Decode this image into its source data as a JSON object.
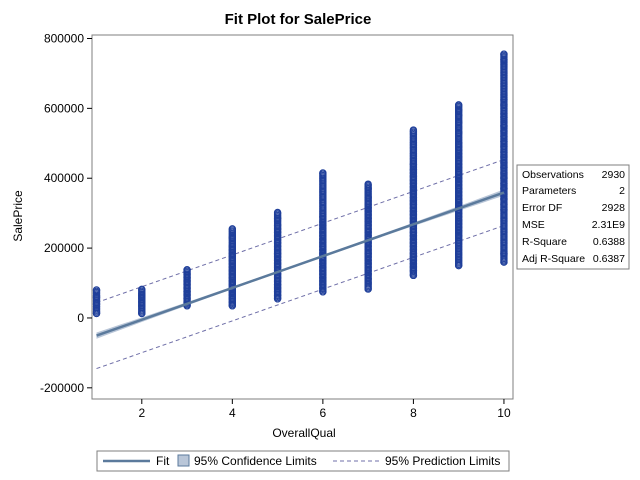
{
  "chart_data": {
    "type": "scatter",
    "title": "Fit Plot for SalePrice",
    "xlabel": "OverallQual",
    "ylabel": "SalePrice",
    "xlim": [
      0.9,
      10.2
    ],
    "ylim": [
      -232000,
      810000
    ],
    "x_ticks": [
      2,
      4,
      6,
      8,
      10
    ],
    "x_tick_labels": [
      "2",
      "4",
      "6",
      "8",
      "10"
    ],
    "y_ticks": [
      -200000,
      0,
      200000,
      400000,
      600000,
      800000
    ],
    "y_tick_labels": [
      "-200000",
      "0",
      "200000",
      "400000",
      "600000",
      "800000"
    ],
    "grid": false,
    "colors": {
      "points": "#1f3f9a",
      "fit": "#5b7a9c",
      "confidence": "#b9c6d8",
      "prediction": "#6f6fa8",
      "frame": "#7f7f7f"
    },
    "fit_line": {
      "intercept": -96000,
      "slope": 45500
    },
    "confidence_limits": {
      "half_width_at_ends": 9000,
      "half_width_at_center": 3000
    },
    "prediction_limits": {
      "offset": 94400
    },
    "points_by_quality": [
      {
        "x": 1,
        "min": 13000,
        "max": 80000,
        "values": [
          13000,
          40000,
          60000,
          80000
        ]
      },
      {
        "x": 2,
        "min": 13000,
        "max": 82000,
        "values": [
          13000,
          35000,
          45000,
          55000,
          62000,
          68000,
          82000
        ]
      },
      {
        "x": 3,
        "min": 35000,
        "max": 138000,
        "values": [
          35000,
          45000,
          55000,
          65000,
          75000,
          85000,
          95000,
          105000,
          115000,
          125000,
          138000
        ]
      },
      {
        "x": 4,
        "min": 35000,
        "max": 255000,
        "values": [
          35000,
          45000,
          55000,
          65000,
          75000,
          85000,
          95000,
          105000,
          115000,
          125000,
          135000,
          145000,
          155000,
          165000,
          175000,
          185000,
          195000,
          205000,
          230000,
          255000
        ]
      },
      {
        "x": 5,
        "min": 55000,
        "max": 302000,
        "values": [
          55000,
          65000,
          75000,
          85000,
          95000,
          105000,
          115000,
          125000,
          135000,
          145000,
          155000,
          165000,
          175000,
          185000,
          195000,
          205000,
          215000,
          225000,
          235000,
          245000,
          255000,
          265000,
          285000,
          302000
        ]
      },
      {
        "x": 6,
        "min": 75000,
        "max": 415000,
        "values": [
          75000,
          85000,
          95000,
          105000,
          115000,
          125000,
          135000,
          145000,
          155000,
          165000,
          175000,
          185000,
          195000,
          205000,
          215000,
          225000,
          235000,
          245000,
          255000,
          265000,
          275000,
          290000,
          415000
        ]
      },
      {
        "x": 7,
        "min": 83000,
        "max": 383000,
        "values": [
          83000,
          100000,
          112000,
          125000,
          135000,
          145000,
          155000,
          165000,
          175000,
          185000,
          195000,
          205000,
          215000,
          225000,
          235000,
          245000,
          255000,
          265000,
          275000,
          285000,
          295000,
          305000,
          315000,
          325000,
          335000,
          345000,
          370000,
          383000
        ]
      },
      {
        "x": 8,
        "min": 122000,
        "max": 538000,
        "values": [
          122000,
          135000,
          145000,
          155000,
          165000,
          175000,
          185000,
          195000,
          205000,
          215000,
          225000,
          235000,
          245000,
          255000,
          265000,
          275000,
          285000,
          295000,
          305000,
          315000,
          325000,
          335000,
          345000,
          355000,
          365000,
          375000,
          385000,
          395000,
          405000,
          415000,
          425000,
          440000,
          538000
        ]
      },
      {
        "x": 9,
        "min": 150000,
        "max": 610000,
        "values": [
          150000,
          235000,
          250000,
          260000,
          270000,
          280000,
          290000,
          300000,
          310000,
          320000,
          330000,
          340000,
          350000,
          360000,
          370000,
          380000,
          390000,
          400000,
          410000,
          420000,
          430000,
          440000,
          450000,
          460000,
          470000,
          480000,
          490000,
          500000,
          530000,
          560000,
          580000,
          595000,
          610000
        ]
      },
      {
        "x": 10,
        "min": 160000,
        "max": 755000,
        "values": [
          160000,
          185000,
          310000,
          325000,
          340000,
          355000,
          370000,
          385000,
          400000,
          415000,
          430000,
          445000,
          460000,
          475000,
          490000,
          505000,
          520000,
          535000,
          550000,
          575000,
          585000,
          610000,
          625000,
          740000,
          755000
        ]
      }
    ],
    "fit_statistics": [
      {
        "label": "Observations",
        "value": "2930"
      },
      {
        "label": "Parameters",
        "value": "2"
      },
      {
        "label": "Error DF",
        "value": "2928"
      },
      {
        "label": "MSE",
        "value": "2.31E9"
      },
      {
        "label": "R-Square",
        "value": "0.6388"
      },
      {
        "label": "Adj R-Square",
        "value": "0.6387"
      }
    ],
    "legend": {
      "placement": "bottom",
      "items": [
        {
          "key": "fit",
          "label": "Fit"
        },
        {
          "key": "confidence",
          "label": "95% Confidence Limits"
        },
        {
          "key": "prediction",
          "label": "95% Prediction Limits"
        }
      ]
    }
  }
}
